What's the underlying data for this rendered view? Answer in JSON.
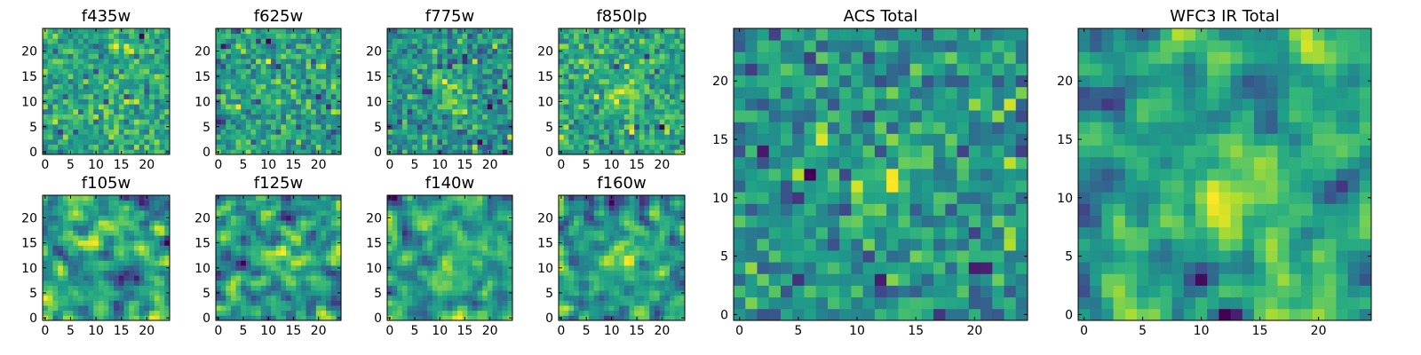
{
  "chart_data": [
    {
      "type": "heatmap",
      "title": "f435w",
      "grid_size": 25,
      "xticks": [
        0,
        5,
        10,
        15,
        20
      ],
      "yticks": [
        0,
        5,
        10,
        15,
        20
      ],
      "xlim": [
        -0.5,
        24.5
      ],
      "ylim": [
        -0.5,
        24.5
      ],
      "colormap": "viridis",
      "pattern": "noise",
      "seed": 11,
      "value_range": [
        0,
        1
      ]
    },
    {
      "type": "heatmap",
      "title": "f625w",
      "grid_size": 25,
      "xticks": [
        0,
        5,
        10,
        15,
        20
      ],
      "yticks": [
        0,
        5,
        10,
        15,
        20
      ],
      "xlim": [
        -0.5,
        24.5
      ],
      "ylim": [
        -0.5,
        24.5
      ],
      "colormap": "viridis",
      "pattern": "noise",
      "seed": 23,
      "value_range": [
        0,
        1
      ]
    },
    {
      "type": "heatmap",
      "title": "f775w",
      "grid_size": 25,
      "xticks": [
        0,
        5,
        10,
        15,
        20
      ],
      "yticks": [
        0,
        5,
        10,
        15,
        20
      ],
      "xlim": [
        -0.5,
        24.5
      ],
      "ylim": [
        -0.5,
        24.5
      ],
      "colormap": "viridis",
      "pattern": "noise-with-central-source",
      "seed": 37,
      "value_range": [
        0,
        1
      ]
    },
    {
      "type": "heatmap",
      "title": "f850lp",
      "grid_size": 25,
      "xticks": [
        0,
        5,
        10,
        15,
        20
      ],
      "yticks": [
        0,
        5,
        10,
        15,
        20
      ],
      "xlim": [
        -0.5,
        24.5
      ],
      "ylim": [
        -0.5,
        24.5
      ],
      "colormap": "viridis",
      "pattern": "noise-with-central-source",
      "seed": 41,
      "value_range": [
        0,
        1
      ]
    },
    {
      "type": "heatmap",
      "title": "f105w",
      "grid_size": 25,
      "xticks": [
        0,
        5,
        10,
        15,
        20
      ],
      "yticks": [
        0,
        5,
        10,
        15,
        20
      ],
      "xlim": [
        -0.5,
        24.5
      ],
      "ylim": [
        -0.5,
        24.5
      ],
      "colormap": "viridis",
      "pattern": "smooth-noise",
      "seed": 53,
      "value_range": [
        0,
        1
      ]
    },
    {
      "type": "heatmap",
      "title": "f125w",
      "grid_size": 25,
      "xticks": [
        0,
        5,
        10,
        15,
        20
      ],
      "yticks": [
        0,
        5,
        10,
        15,
        20
      ],
      "xlim": [
        -0.5,
        24.5
      ],
      "ylim": [
        -0.5,
        24.5
      ],
      "colormap": "viridis",
      "pattern": "smooth-noise-with-central-source",
      "seed": 67,
      "value_range": [
        0,
        1
      ]
    },
    {
      "type": "heatmap",
      "title": "f140w",
      "grid_size": 25,
      "xticks": [
        0,
        5,
        10,
        15,
        20
      ],
      "yticks": [
        0,
        5,
        10,
        15,
        20
      ],
      "xlim": [
        -0.5,
        24.5
      ],
      "ylim": [
        -0.5,
        24.5
      ],
      "colormap": "viridis",
      "pattern": "smooth-noise-with-central-source",
      "seed": 79,
      "value_range": [
        0,
        1
      ]
    },
    {
      "type": "heatmap",
      "title": "f160w",
      "grid_size": 25,
      "xticks": [
        0,
        5,
        10,
        15,
        20
      ],
      "yticks": [
        0,
        5,
        10,
        15,
        20
      ],
      "xlim": [
        -0.5,
        24.5
      ],
      "ylim": [
        -0.5,
        24.5
      ],
      "colormap": "viridis",
      "pattern": "smooth-noise-with-central-source",
      "seed": 83,
      "value_range": [
        0,
        1
      ]
    },
    {
      "type": "heatmap",
      "title": "ACS Total",
      "grid_size": 25,
      "xticks": [
        0,
        5,
        10,
        15,
        20
      ],
      "yticks": [
        0,
        5,
        10,
        15,
        20
      ],
      "xlim": [
        -0.5,
        24.5
      ],
      "ylim": [
        -0.5,
        24.5
      ],
      "colormap": "viridis",
      "pattern": "noise-with-central-source",
      "seed": 97,
      "value_range": [
        0,
        1
      ]
    },
    {
      "type": "heatmap",
      "title": "WFC3 IR Total",
      "grid_size": 25,
      "xticks": [
        0,
        5,
        10,
        15,
        20
      ],
      "yticks": [
        0,
        5,
        10,
        15,
        20
      ],
      "xlim": [
        -0.5,
        24.5
      ],
      "ylim": [
        -0.5,
        24.5
      ],
      "colormap": "viridis",
      "pattern": "smooth-noise-with-central-source",
      "seed": 101,
      "value_range": [
        0,
        1
      ]
    }
  ],
  "colors": {
    "background": "#ffffff",
    "axes": "#000000",
    "text": "#000000"
  }
}
